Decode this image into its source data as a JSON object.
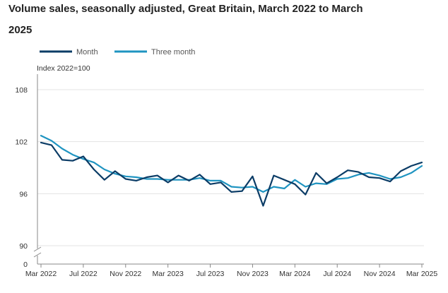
{
  "chart_data": {
    "type": "line",
    "title_line1": "Volume sales, seasonally adjusted, Great Britain, March 2022 to March",
    "title_line2": "2025",
    "unit_label": "Index 2022=100",
    "y_ticks": [
      "108",
      "102",
      "96",
      "90",
      "0"
    ],
    "y_tick_values": [
      108,
      102,
      96,
      90
    ],
    "ylim": [
      90,
      108
    ],
    "y_axis_broken": true,
    "x_ticks": [
      "Mar 2022",
      "Jul 2022",
      "Nov 2022",
      "Mar 2023",
      "Jul 2023",
      "Nov 2023",
      "Mar 2024",
      "Jul 2024",
      "Nov 2024",
      "Mar 2025"
    ],
    "x_tick_index": [
      0,
      4,
      8,
      12,
      16,
      20,
      24,
      28,
      32,
      36
    ],
    "grid": true,
    "legend_position": "top-left",
    "x": [
      "2022-03",
      "2022-04",
      "2022-05",
      "2022-06",
      "2022-07",
      "2022-08",
      "2022-09",
      "2022-10",
      "2022-11",
      "2022-12",
      "2023-01",
      "2023-02",
      "2023-03",
      "2023-04",
      "2023-05",
      "2023-06",
      "2023-07",
      "2023-08",
      "2023-09",
      "2023-10",
      "2023-11",
      "2023-12",
      "2024-01",
      "2024-02",
      "2024-03",
      "2024-04",
      "2024-05",
      "2024-06",
      "2024-07",
      "2024-08",
      "2024-09",
      "2024-10",
      "2024-11",
      "2024-12",
      "2025-01",
      "2025-02",
      "2025-03"
    ],
    "series": [
      {
        "name": "Month",
        "color": "#0b3c66",
        "values": [
          101.9,
          101.6,
          99.9,
          99.8,
          100.3,
          98.8,
          97.6,
          98.6,
          97.7,
          97.5,
          97.9,
          98.1,
          97.3,
          98.1,
          97.5,
          98.2,
          97.1,
          97.3,
          96.2,
          96.3,
          98.0,
          94.6,
          98.1,
          97.6,
          97.1,
          95.9,
          98.4,
          97.2,
          97.9,
          98.7,
          98.5,
          97.9,
          97.8,
          97.4,
          98.6,
          99.2,
          99.6
        ]
      },
      {
        "name": "Three month",
        "color": "#1f94c1",
        "values": [
          102.7,
          102.1,
          101.2,
          100.5,
          100.0,
          99.6,
          98.8,
          98.3,
          98.0,
          97.9,
          97.7,
          97.7,
          97.6,
          97.6,
          97.6,
          97.8,
          97.5,
          97.5,
          96.8,
          96.7,
          96.8,
          96.2,
          96.8,
          96.6,
          97.6,
          96.8,
          97.2,
          97.1,
          97.7,
          97.8,
          98.2,
          98.4,
          98.1,
          97.7,
          97.9,
          98.4,
          99.2
        ]
      }
    ]
  }
}
